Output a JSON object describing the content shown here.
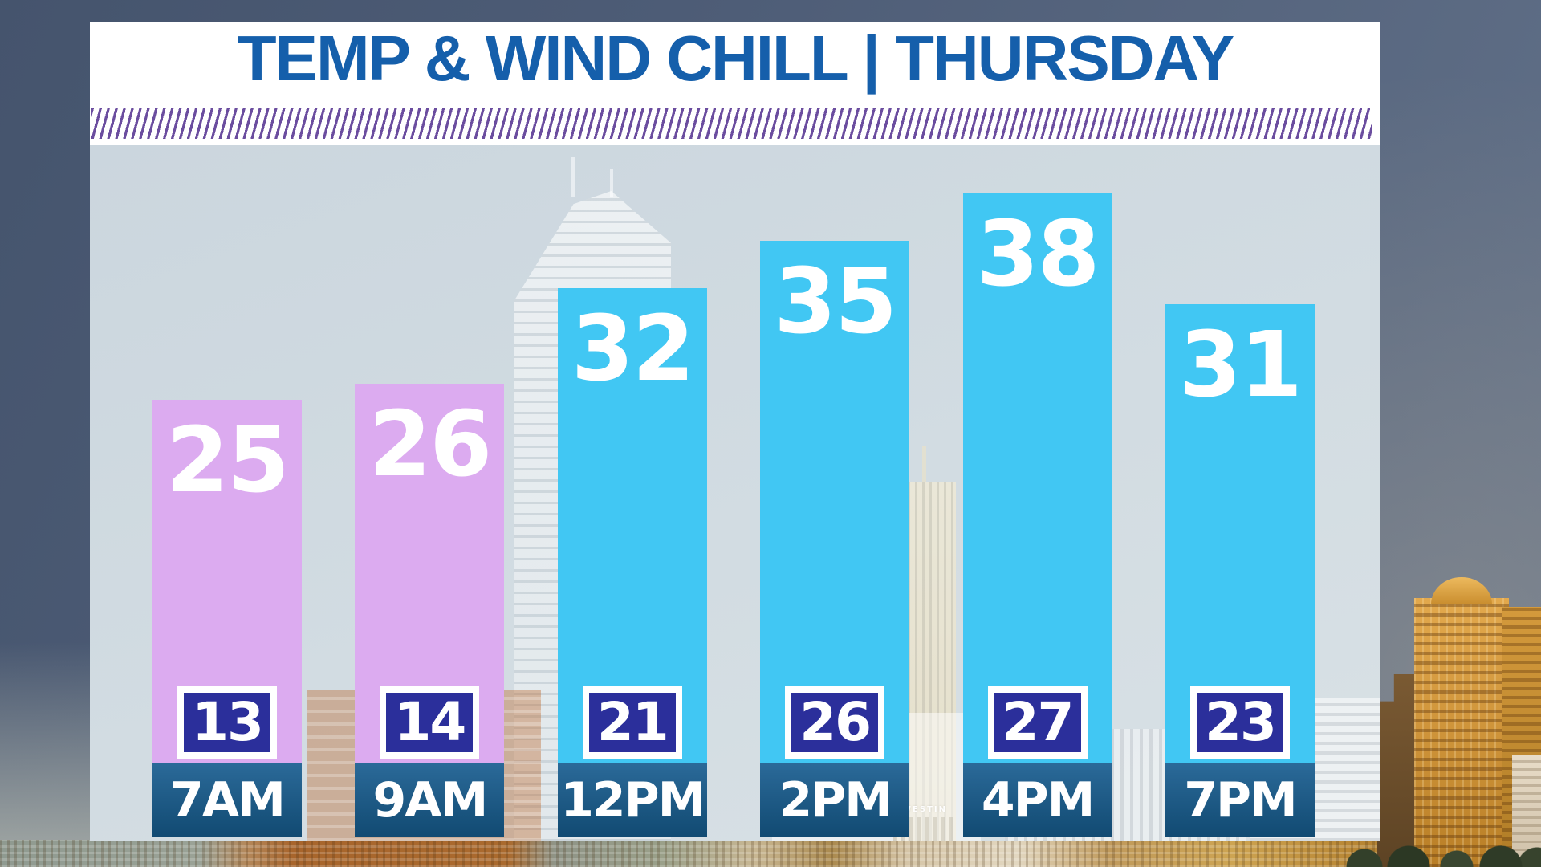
{
  "title": "TEMP & WIND CHILL | THURSDAY",
  "chart_data": {
    "type": "bar",
    "title": "TEMP & WIND CHILL | THURSDAY",
    "categories": [
      "7AM",
      "9AM",
      "12PM",
      "2PM",
      "4PM",
      "7PM"
    ],
    "series": [
      {
        "name": "Temperature",
        "values": [
          25,
          26,
          32,
          35,
          38,
          31
        ]
      },
      {
        "name": "Wind Chill",
        "values": [
          13,
          14,
          21,
          26,
          27,
          23
        ]
      }
    ],
    "legend": "none",
    "grid": false,
    "value_label_position": "temperature inside top of bar; wind chill in navy chip at bar base; time of day in dark blue block under each bar",
    "bar_color_rule": "7AM and 9AM bars lavender-purple, all later bars cyan-blue"
  },
  "bars": [
    {
      "time": "7AM",
      "temp": 25,
      "wind_chill": 13,
      "variant": "purple"
    },
    {
      "time": "9AM",
      "temp": 26,
      "wind_chill": 14,
      "variant": "purple"
    },
    {
      "time": "12PM",
      "temp": 32,
      "wind_chill": 21,
      "variant": "cyan"
    },
    {
      "time": "2PM",
      "temp": 35,
      "wind_chill": 26,
      "variant": "cyan"
    },
    {
      "time": "4PM",
      "temp": 38,
      "wind_chill": 27,
      "variant": "cyan"
    },
    {
      "time": "7PM",
      "temp": 31,
      "wind_chill": 23,
      "variant": "cyan"
    }
  ],
  "colors": {
    "title_blue": "#155fab",
    "banner_bg": "#ffffff",
    "hatch_stripe": "#6b4d9f",
    "panel_bg": "#ccd7df",
    "bar_purple": "#dcabf0",
    "bar_cyan": "#41c7f3",
    "chip_navy": "#2b2f9b",
    "chip_border": "#ffffff",
    "time_bar_top": "#2b6a99",
    "time_bar_bottom": "#114a72",
    "value_text": "#ffffff"
  },
  "background": {
    "westin_sign": "WESTIN"
  }
}
